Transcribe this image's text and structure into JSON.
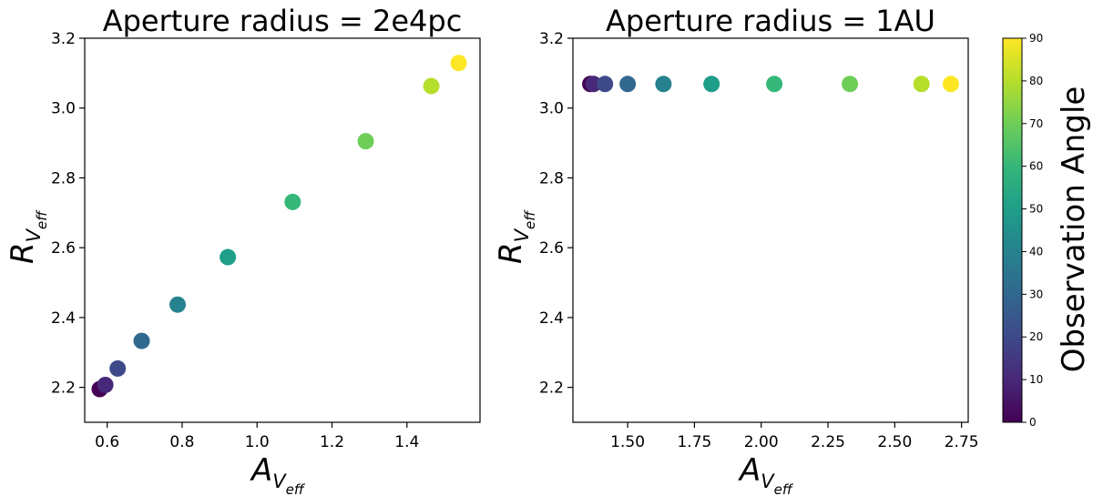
{
  "chart_data": [
    {
      "type": "scatter",
      "title": "Aperture radius = 2e4pc",
      "xlabel": {
        "main": "A",
        "sub": "V",
        "subsub": "eff"
      },
      "ylabel": {
        "main": "R",
        "sub": "V",
        "subsub": "eff"
      },
      "xlim": [
        0.54,
        1.595
      ],
      "ylim": [
        2.1,
        3.2
      ],
      "xticks": [
        "0.6",
        "0.8",
        "1.0",
        "1.2",
        "1.4"
      ],
      "yticks": [
        "2.2",
        "2.4",
        "2.6",
        "2.8",
        "3.0",
        "3.2"
      ],
      "grid": false,
      "points": [
        {
          "x": 0.58,
          "y": 2.195,
          "angle": 0
        },
        {
          "x": 0.595,
          "y": 2.207,
          "angle": 10
        },
        {
          "x": 0.628,
          "y": 2.254,
          "angle": 20
        },
        {
          "x": 0.692,
          "y": 2.333,
          "angle": 30
        },
        {
          "x": 0.788,
          "y": 2.437,
          "angle": 40
        },
        {
          "x": 0.922,
          "y": 2.573,
          "angle": 50
        },
        {
          "x": 1.095,
          "y": 2.731,
          "angle": 60
        },
        {
          "x": 1.29,
          "y": 2.905,
          "angle": 70
        },
        {
          "x": 1.465,
          "y": 3.063,
          "angle": 80
        },
        {
          "x": 1.538,
          "y": 3.129,
          "angle": 90
        }
      ]
    },
    {
      "type": "scatter",
      "title": "Aperture radius = 1AU",
      "xlabel": {
        "main": "A",
        "sub": "V",
        "subsub": "eff"
      },
      "ylabel": {
        "main": "R",
        "sub": "V",
        "subsub": "eff"
      },
      "xlim": [
        1.295,
        2.775
      ],
      "ylim": [
        2.1,
        3.2
      ],
      "xticks": [
        "1.50",
        "1.75",
        "2.00",
        "2.25",
        "2.50",
        "2.75"
      ],
      "yticks": [
        "2.2",
        "2.4",
        "2.6",
        "2.8",
        "3.0",
        "3.2"
      ],
      "grid": false,
      "points": [
        {
          "x": 1.36,
          "y": 3.069,
          "angle": 0
        },
        {
          "x": 1.372,
          "y": 3.069,
          "angle": 10
        },
        {
          "x": 1.415,
          "y": 3.069,
          "angle": 20
        },
        {
          "x": 1.5,
          "y": 3.069,
          "angle": 30
        },
        {
          "x": 1.634,
          "y": 3.069,
          "angle": 40
        },
        {
          "x": 1.814,
          "y": 3.069,
          "angle": 50
        },
        {
          "x": 2.049,
          "y": 3.069,
          "angle": 60
        },
        {
          "x": 2.332,
          "y": 3.069,
          "angle": 70
        },
        {
          "x": 2.6,
          "y": 3.069,
          "angle": 80
        },
        {
          "x": 2.71,
          "y": 3.069,
          "angle": 90
        }
      ]
    }
  ],
  "colorbar": {
    "label": "Observation Angle",
    "range": [
      0,
      90
    ],
    "ticks": [
      "0",
      "10",
      "20",
      "30",
      "40",
      "50",
      "60",
      "70",
      "80",
      "90"
    ],
    "colormap": "viridis",
    "colormap_stops": [
      "#440154",
      "#482878",
      "#3e4989",
      "#31688e",
      "#26828e",
      "#1f9e89",
      "#35b779",
      "#6ece58",
      "#b5de2b",
      "#fde725"
    ]
  }
}
